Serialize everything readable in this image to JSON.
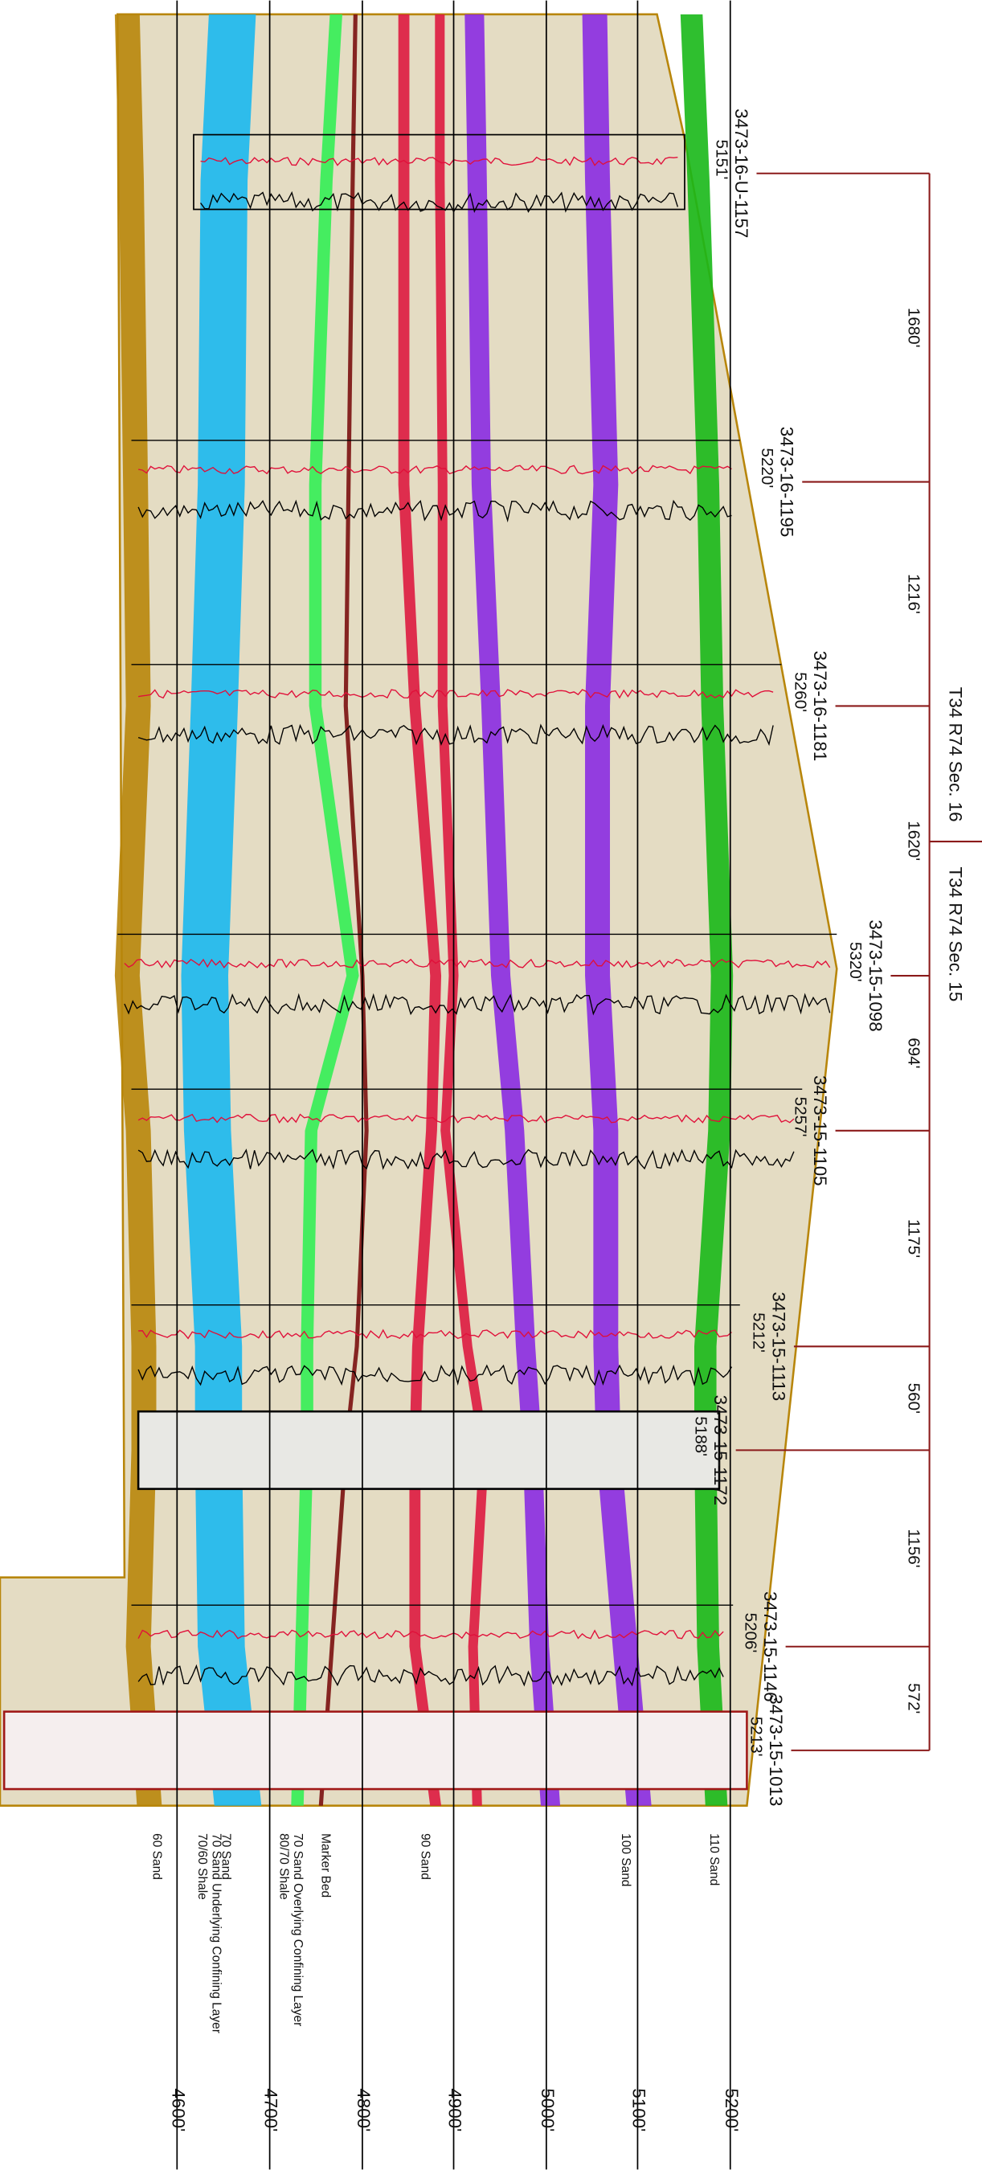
{
  "wells": [
    {
      "name": "3473-16-U-1157",
      "elevation": "5151'"
    },
    {
      "name": "3473-16-1195",
      "elevation": "5220'"
    },
    {
      "name": "3473-16-1181",
      "elevation": "5260'"
    },
    {
      "name": "3473-15-1098",
      "elevation": "5320'"
    },
    {
      "name": "3473-15-1105",
      "elevation": "5257'"
    },
    {
      "name": "3473-15-1113",
      "elevation": "5212'"
    },
    {
      "name": "3473-15-1172",
      "elevation": "5188'"
    },
    {
      "name": "3473-15-1146",
      "elevation": "5206'"
    },
    {
      "name": "3473-15-1013",
      "elevation": "5213'"
    }
  ],
  "distances": [
    "1680'",
    "1216'",
    "1620'",
    "694'",
    "1175'",
    "560'",
    "1156'",
    "572'"
  ],
  "sections": [
    "T34 R74 Sec. 16",
    "T34 R74 Sec. 15"
  ],
  "formations": [
    "60 Sand",
    "70/60 Shale",
    "70 Sand Underlying Confining Layer",
    "70 Sand",
    "80/70 Shale",
    "70 Sand Overlying Confining Layer",
    "Marker Bed",
    "90 Sand",
    "100 Sand",
    "110 Sand"
  ],
  "depths": [
    "4600'",
    "4700'",
    "4800'",
    "4900'",
    "5000'",
    "5100'",
    "5200'"
  ]
}
